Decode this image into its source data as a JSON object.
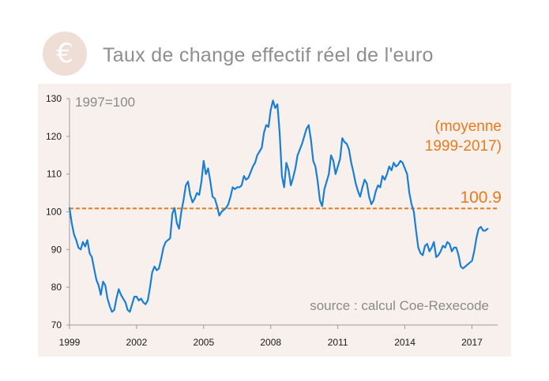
{
  "header": {
    "icon": "euro-icon",
    "icon_glyph": "€",
    "title": "Taux de change effectif réel de l'euro"
  },
  "colors": {
    "line": "#1a7fd4",
    "average": "#ea7a1b",
    "panel_bg": "#f7f0ec",
    "badge": "#eeded6"
  },
  "chart_data": {
    "type": "line",
    "title": "Taux de change effectif réel de l'euro",
    "base_note": "1997=100",
    "source": "source : calcul Coe-Rexecode",
    "xlim": [
      1999,
      2018.15
    ],
    "ylim": [
      70,
      130
    ],
    "x_ticks": [
      "1999",
      "2002",
      "2005",
      "2008",
      "2011",
      "2014",
      "2017"
    ],
    "y_ticks": [
      "70",
      "80",
      "90",
      "100",
      "110",
      "120",
      "130"
    ],
    "average": {
      "value": 100.9,
      "value_label": "100.9",
      "label_line1": "(moyenne",
      "label_line2": "1999-2017)"
    },
    "series": [
      {
        "name": "Taux de change effectif réel de l'euro",
        "x": [
          1999.0,
          1999.1,
          1999.2,
          1999.3,
          1999.4,
          1999.5,
          1999.6,
          1999.7,
          1999.8,
          1999.9,
          2000.0,
          2000.1,
          2000.2,
          2000.3,
          2000.4,
          2000.5,
          2000.6,
          2000.7,
          2000.8,
          2000.9,
          2001.0,
          2001.1,
          2001.2,
          2001.3,
          2001.4,
          2001.5,
          2001.6,
          2001.7,
          2001.8,
          2001.9,
          2002.0,
          2002.1,
          2002.2,
          2002.3,
          2002.4,
          2002.5,
          2002.6,
          2002.7,
          2002.8,
          2002.9,
          2003.0,
          2003.1,
          2003.2,
          2003.3,
          2003.4,
          2003.5,
          2003.6,
          2003.7,
          2003.8,
          2003.9,
          2004.0,
          2004.1,
          2004.2,
          2004.3,
          2004.4,
          2004.5,
          2004.6,
          2004.7,
          2004.8,
          2004.9,
          2005.0,
          2005.1,
          2005.2,
          2005.3,
          2005.4,
          2005.5,
          2005.6,
          2005.7,
          2005.8,
          2005.9,
          2006.0,
          2006.1,
          2006.2,
          2006.3,
          2006.4,
          2006.5,
          2006.6,
          2006.7,
          2006.8,
          2006.9,
          2007.0,
          2007.1,
          2007.2,
          2007.3,
          2007.4,
          2007.5,
          2007.6,
          2007.7,
          2007.8,
          2007.9,
          2008.0,
          2008.1,
          2008.2,
          2008.3,
          2008.4,
          2008.5,
          2008.6,
          2008.7,
          2008.8,
          2008.9,
          2009.0,
          2009.1,
          2009.2,
          2009.3,
          2009.4,
          2009.5,
          2009.6,
          2009.7,
          2009.8,
          2009.9,
          2010.0,
          2010.1,
          2010.2,
          2010.3,
          2010.4,
          2010.5,
          2010.6,
          2010.7,
          2010.8,
          2010.9,
          2011.0,
          2011.1,
          2011.2,
          2011.3,
          2011.4,
          2011.5,
          2011.6,
          2011.7,
          2011.8,
          2011.9,
          2012.0,
          2012.1,
          2012.2,
          2012.3,
          2012.4,
          2012.5,
          2012.6,
          2012.7,
          2012.8,
          2012.9,
          2013.0,
          2013.1,
          2013.2,
          2013.3,
          2013.4,
          2013.5,
          2013.6,
          2013.7,
          2013.8,
          2013.9,
          2014.0,
          2014.1,
          2014.2,
          2014.3,
          2014.4,
          2014.5,
          2014.6,
          2014.7,
          2014.8,
          2014.9,
          2015.0,
          2015.1,
          2015.2,
          2015.3,
          2015.4,
          2015.5,
          2015.6,
          2015.7,
          2015.8,
          2015.9,
          2016.0,
          2016.1,
          2016.2,
          2016.3,
          2016.4,
          2016.5,
          2016.6,
          2016.7,
          2016.8,
          2016.9,
          2017.0,
          2017.1,
          2017.2,
          2017.3,
          2017.4,
          2017.5,
          2017.6,
          2017.7
        ],
        "values": [
          101.0,
          97.0,
          94.0,
          92.5,
          90.5,
          90.0,
          92.0,
          90.8,
          92.5,
          89.0,
          88.0,
          85.0,
          82.0,
          80.5,
          78.0,
          81.5,
          80.5,
          77.0,
          75.0,
          73.5,
          74.0,
          77.0,
          79.5,
          78.0,
          77.0,
          76.0,
          74.0,
          73.5,
          75.5,
          77.5,
          77.5,
          76.5,
          77.0,
          76.0,
          75.5,
          76.5,
          80.0,
          84.0,
          85.5,
          84.5,
          85.0,
          87.5,
          90.5,
          92.0,
          92.5,
          93.0,
          99.5,
          101.0,
          97.0,
          95.5,
          100.0,
          103.0,
          107.0,
          108.0,
          104.5,
          102.5,
          103.5,
          105.0,
          104.5,
          108.0,
          113.5,
          110.0,
          111.5,
          108.0,
          104.0,
          103.5,
          101.5,
          99.0,
          100.0,
          100.5,
          101.0,
          102.0,
          104.0,
          106.5,
          106.0,
          106.5,
          106.5,
          107.0,
          109.5,
          108.5,
          109.0,
          110.5,
          112.0,
          113.0,
          115.0,
          116.0,
          117.0,
          121.0,
          123.0,
          122.5,
          127.0,
          129.5,
          127.5,
          128.5,
          121.0,
          109.5,
          106.5,
          113.0,
          111.0,
          107.0,
          109.0,
          111.5,
          115.0,
          116.5,
          118.0,
          120.0,
          122.0,
          123.0,
          119.0,
          113.5,
          112.0,
          108.0,
          103.0,
          101.5,
          106.0,
          108.0,
          110.0,
          115.0,
          113.5,
          110.0,
          112.0,
          114.0,
          119.5,
          118.5,
          118.0,
          116.5,
          113.0,
          110.5,
          107.5,
          105.5,
          104.0,
          106.5,
          108.5,
          107.5,
          104.0,
          102.0,
          103.0,
          105.5,
          107.0,
          106.5,
          109.5,
          108.5,
          110.0,
          112.0,
          111.0,
          113.0,
          112.0,
          112.5,
          113.5,
          113.0,
          111.5,
          110.0,
          105.0,
          102.0,
          100.0,
          95.0,
          90.5,
          89.0,
          88.5,
          91.0,
          91.5,
          89.5,
          90.5,
          92.0,
          88.0,
          88.5,
          89.5,
          91.0,
          90.5,
          92.0,
          91.5,
          89.5,
          90.5,
          90.5,
          88.5,
          85.5,
          85.0,
          85.5,
          86.0,
          86.5,
          87.0,
          89.5,
          93.0,
          95.5,
          96.0,
          95.0,
          95.0,
          95.5
        ]
      }
    ]
  }
}
